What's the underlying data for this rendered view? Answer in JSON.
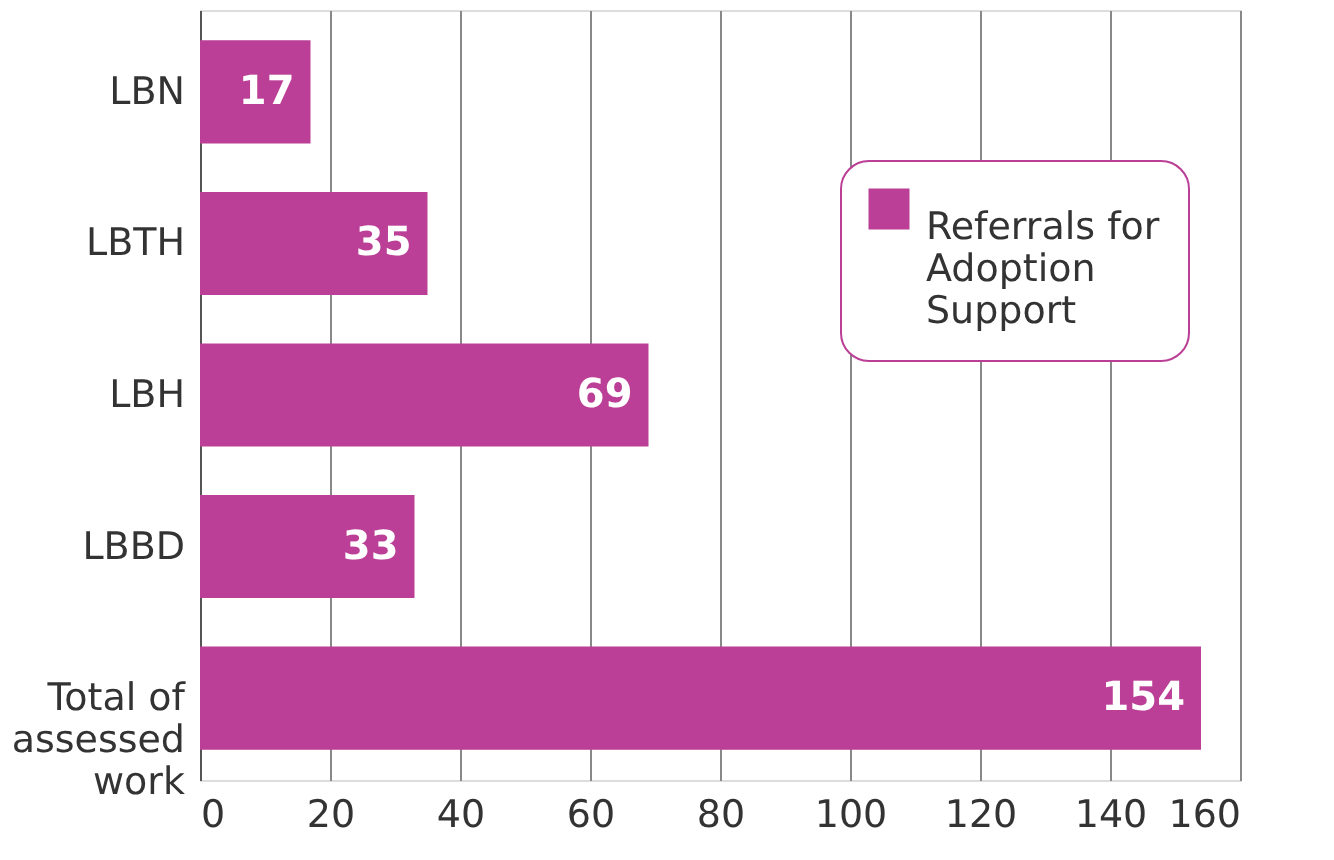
{
  "chart_data": {
    "type": "bar",
    "orientation": "horizontal",
    "categories": [
      "LBN",
      "LBTH",
      "LBH",
      "LBBD",
      "Total of assessed work"
    ],
    "series": [
      {
        "name": "Referrals for Adoption Support",
        "color": "#bb3f96",
        "values": [
          17,
          35,
          69,
          33,
          154
        ]
      }
    ],
    "xlim": [
      0,
      160
    ],
    "xticks": [
      0,
      20,
      40,
      60,
      80,
      100,
      120,
      140,
      160
    ],
    "grid": "x",
    "legend": "top right",
    "data_labels": true
  }
}
